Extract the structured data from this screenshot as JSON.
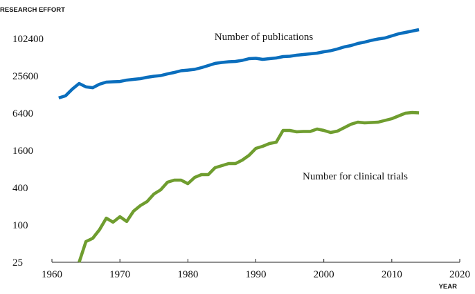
{
  "chart_data": {
    "type": "line",
    "y_label": "RESEARCH EFFORT",
    "x_label": "YEAR",
    "log_scale_y": true,
    "log_base": 4,
    "xlim": [
      1960,
      2020
    ],
    "xticks": [
      1960,
      1970,
      1980,
      1990,
      2000,
      2010,
      2020
    ],
    "ylim": [
      25,
      204800
    ],
    "yticks": [
      25,
      100,
      400,
      1600,
      6400,
      25600,
      102400
    ],
    "series": [
      {
        "name": "Number of publications",
        "color": "#0a6ebd",
        "x": [
          1961,
          1962,
          1963,
          1964,
          1965,
          1966,
          1967,
          1968,
          1969,
          1970,
          1971,
          1972,
          1973,
          1974,
          1975,
          1976,
          1977,
          1978,
          1979,
          1980,
          1981,
          1982,
          1983,
          1984,
          1985,
          1986,
          1987,
          1988,
          1989,
          1990,
          1991,
          1992,
          1993,
          1994,
          1995,
          1996,
          1997,
          1998,
          1999,
          2000,
          2001,
          2002,
          2003,
          2004,
          2005,
          2006,
          2007,
          2008,
          2009,
          2010,
          2011,
          2012,
          2013,
          2014
        ],
        "values": [
          11300,
          12200,
          15700,
          19300,
          17000,
          16500,
          18800,
          20300,
          20600,
          20800,
          21900,
          22500,
          23100,
          24300,
          25300,
          25900,
          27600,
          29100,
          31000,
          31800,
          32700,
          34800,
          37600,
          40700,
          42200,
          43300,
          43900,
          45600,
          48600,
          49300,
          47400,
          48600,
          49900,
          52500,
          53200,
          55300,
          56700,
          58200,
          59700,
          62900,
          65400,
          69700,
          75300,
          79200,
          85500,
          90100,
          96100,
          101100,
          105100,
          113500,
          122600,
          129000,
          135800,
          143000
        ]
      },
      {
        "name": "Number for clinical trials",
        "color": "#6f9d2f",
        "x": [
          1964,
          1965,
          1966,
          1967,
          1968,
          1969,
          1970,
          1971,
          1972,
          1973,
          1974,
          1975,
          1976,
          1977,
          1978,
          1979,
          1980,
          1981,
          1982,
          1983,
          1984,
          1985,
          1986,
          1987,
          1988,
          1989,
          1990,
          1991,
          1992,
          1993,
          1994,
          1995,
          1996,
          1997,
          1998,
          1999,
          2000,
          2001,
          2002,
          2003,
          2004,
          2005,
          2006,
          2007,
          2008,
          2009,
          2010,
          2011,
          2012,
          2013,
          2014
        ],
        "values": [
          25,
          54,
          61,
          84,
          129,
          111,
          136,
          114,
          167,
          205,
          239,
          317,
          370,
          491,
          531,
          531,
          466,
          587,
          651,
          651,
          842,
          910,
          982,
          982,
          1117,
          1337,
          1728,
          1866,
          2067,
          2177,
          3368,
          3368,
          3200,
          3240,
          3240,
          3545,
          3368,
          3118,
          3282,
          3732,
          4243,
          4582,
          4463,
          4520,
          4582,
          4886,
          5208,
          5772,
          6400,
          6565,
          6480
        ]
      }
    ]
  }
}
